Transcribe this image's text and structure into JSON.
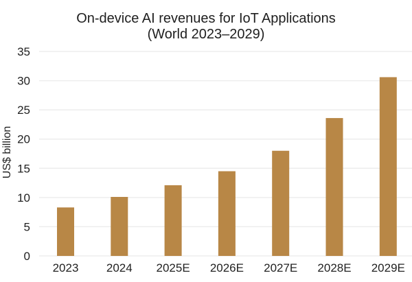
{
  "chart_data": {
    "type": "bar",
    "title": "On-device AI revenues for IoT Applications",
    "subtitle": "(World 2023–2029)",
    "xlabel": "",
    "ylabel": "US$ billion",
    "categories": [
      "2023",
      "2024",
      "2025E",
      "2026E",
      "2027E",
      "2028E",
      "2029E"
    ],
    "values": [
      8.3,
      10.1,
      12.1,
      14.5,
      18.0,
      23.6,
      30.6
    ],
    "ylim": [
      0,
      35
    ],
    "yticks": [
      0,
      5,
      10,
      15,
      20,
      25,
      30,
      35
    ],
    "grid": true,
    "legend": "none",
    "bar_color": "#B88746",
    "grid_color": "#EDEDED"
  }
}
